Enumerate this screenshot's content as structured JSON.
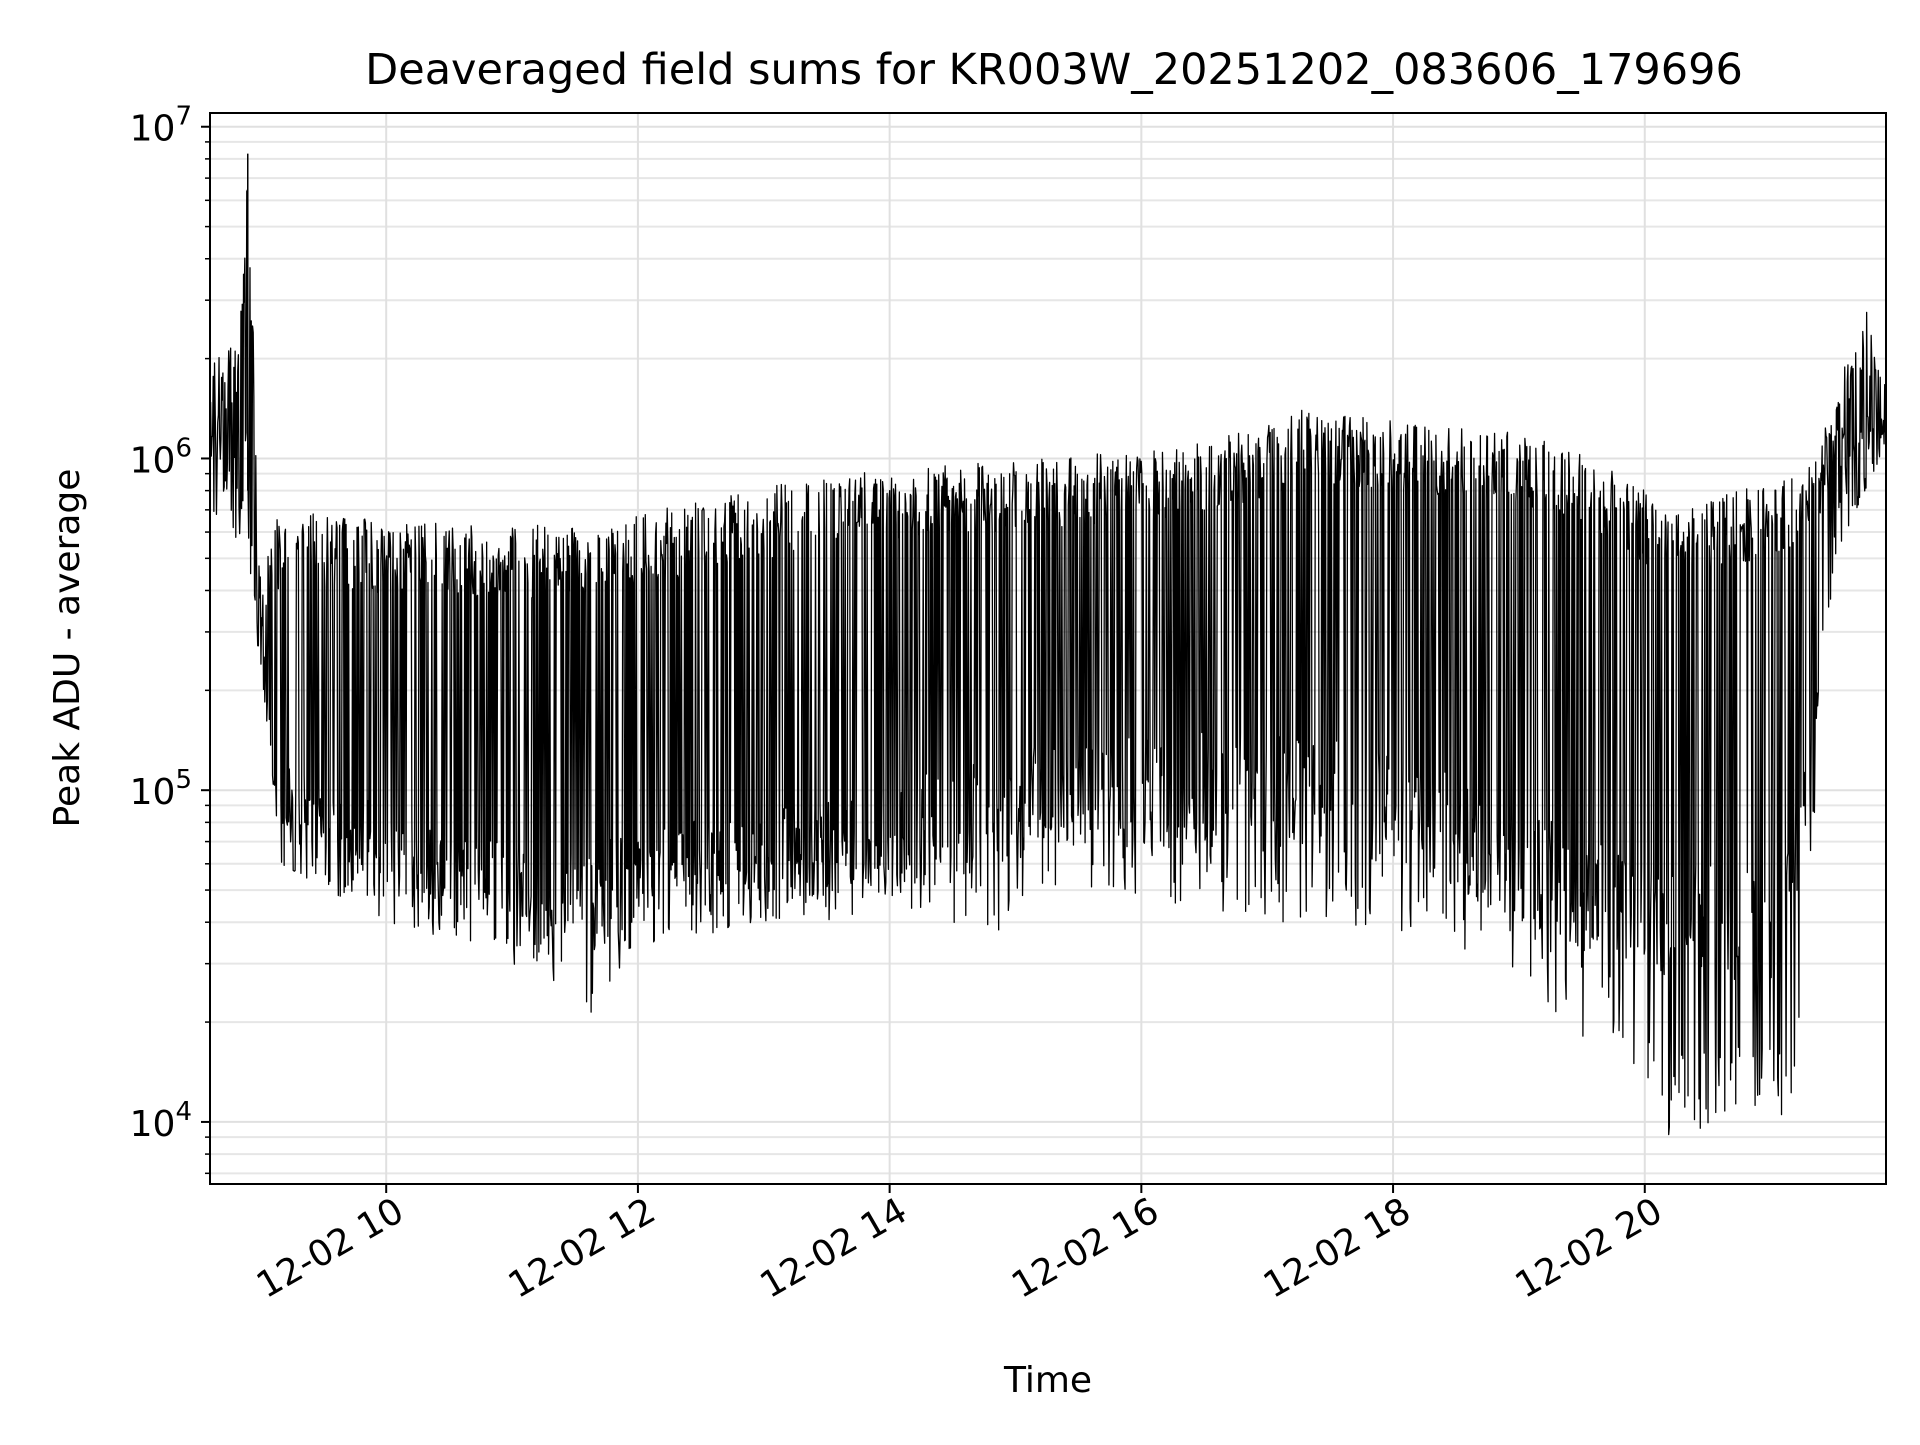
{
  "chart_data": {
    "type": "line",
    "title": "Deaveraged field sums for KR003W_20251202_083606_179696",
    "xlabel": "Time",
    "ylabel": "Peak ADU - average",
    "x_range": [
      "2025-12-02 08:36",
      "2025-12-02 21:55"
    ],
    "xticks": [
      {
        "value": "2025-12-02 10:00",
        "label": "12-02 10"
      },
      {
        "value": "2025-12-02 12:00",
        "label": "12-02 12"
      },
      {
        "value": "2025-12-02 14:00",
        "label": "12-02 14"
      },
      {
        "value": "2025-12-02 16:00",
        "label": "12-02 16"
      },
      {
        "value": "2025-12-02 18:00",
        "label": "12-02 18"
      },
      {
        "value": "2025-12-02 20:00",
        "label": "12-02 20"
      }
    ],
    "yscale": "log",
    "ylim": [
      6500,
      11000000
    ],
    "yticks": [
      {
        "value": 10000,
        "base": "10",
        "exp": "4"
      },
      {
        "value": 100000,
        "base": "10",
        "exp": "5"
      },
      {
        "value": 1000000,
        "base": "10",
        "exp": "6"
      },
      {
        "value": 10000000,
        "base": "10",
        "exp": "7"
      }
    ],
    "grid": true,
    "legend": "none",
    "series": [
      {
        "color": "#000000",
        "upper_envelope": [
          {
            "x": "2025-12-02 08:36",
            "y": 1900000
          },
          {
            "x": "2025-12-02 08:50",
            "y": 2400000
          },
          {
            "x": "2025-12-02 08:54",
            "y": 8300000
          },
          {
            "x": "2025-12-02 09:00",
            "y": 500000
          },
          {
            "x": "2025-12-02 09:10",
            "y": 700000
          },
          {
            "x": "2025-12-02 10:00",
            "y": 650000
          },
          {
            "x": "2025-12-02 11:00",
            "y": 620000
          },
          {
            "x": "2025-12-02 12:00",
            "y": 680000
          },
          {
            "x": "2025-12-02 13:00",
            "y": 820000
          },
          {
            "x": "2025-12-02 14:00",
            "y": 950000
          },
          {
            "x": "2025-12-02 15:00",
            "y": 1000000
          },
          {
            "x": "2025-12-02 16:00",
            "y": 1050000
          },
          {
            "x": "2025-12-02 17:00",
            "y": 1250000
          },
          {
            "x": "2025-12-02 17:15",
            "y": 1400000
          },
          {
            "x": "2025-12-02 18:00",
            "y": 1300000
          },
          {
            "x": "2025-12-02 19:00",
            "y": 1200000
          },
          {
            "x": "2025-12-02 19:30",
            "y": 1050000
          },
          {
            "x": "2025-12-02 20:00",
            "y": 800000
          },
          {
            "x": "2025-12-02 20:30",
            "y": 750000
          },
          {
            "x": "2025-12-02 21:00",
            "y": 850000
          },
          {
            "x": "2025-12-02 21:20",
            "y": 950000
          },
          {
            "x": "2025-12-02 21:30",
            "y": 1500000
          },
          {
            "x": "2025-12-02 21:45",
            "y": 3200000
          },
          {
            "x": "2025-12-02 21:55",
            "y": 1600000
          }
        ],
        "lower_envelope": [
          {
            "x": "2025-12-02 08:36",
            "y": 700000
          },
          {
            "x": "2025-12-02 08:50",
            "y": 500000
          },
          {
            "x": "2025-12-02 09:00",
            "y": 250000
          },
          {
            "x": "2025-12-02 09:10",
            "y": 60000
          },
          {
            "x": "2025-12-02 10:00",
            "y": 40000
          },
          {
            "x": "2025-12-02 11:00",
            "y": 30000
          },
          {
            "x": "2025-12-02 11:45",
            "y": 20000
          },
          {
            "x": "2025-12-02 12:00",
            "y": 32000
          },
          {
            "x": "2025-12-02 13:00",
            "y": 38000
          },
          {
            "x": "2025-12-02 14:00",
            "y": 42000
          },
          {
            "x": "2025-12-02 14:50",
            "y": 34000
          },
          {
            "x": "2025-12-02 15:00",
            "y": 48000
          },
          {
            "x": "2025-12-02 16:00",
            "y": 48000
          },
          {
            "x": "2025-12-02 17:00",
            "y": 40000
          },
          {
            "x": "2025-12-02 18:00",
            "y": 38000
          },
          {
            "x": "2025-12-02 19:00",
            "y": 28000
          },
          {
            "x": "2025-12-02 19:30",
            "y": 17000
          },
          {
            "x": "2025-12-02 20:00",
            "y": 14000
          },
          {
            "x": "2025-12-02 20:10",
            "y": 9000
          },
          {
            "x": "2025-12-02 20:50",
            "y": 10000
          },
          {
            "x": "2025-12-02 21:10",
            "y": 9000
          },
          {
            "x": "2025-12-02 21:20",
            "y": 70000
          },
          {
            "x": "2025-12-02 21:30",
            "y": 500000
          },
          {
            "x": "2025-12-02 21:55",
            "y": 1100000
          }
        ],
        "baseline": [
          {
            "x": "2025-12-02 08:36",
            "y": 1000000
          },
          {
            "x": "2025-12-02 08:55",
            "y": 800000
          },
          {
            "x": "2025-12-02 09:00",
            "y": 250000
          },
          {
            "x": "2025-12-02 09:10",
            "y": 80000
          },
          {
            "x": "2025-12-02 10:00",
            "y": 60000
          },
          {
            "x": "2025-12-02 11:00",
            "y": 45000
          },
          {
            "x": "2025-12-02 12:00",
            "y": 50000
          },
          {
            "x": "2025-12-02 13:00",
            "y": 60000
          },
          {
            "x": "2025-12-02 14:00",
            "y": 70000
          },
          {
            "x": "2025-12-02 15:00",
            "y": 90000
          },
          {
            "x": "2025-12-02 16:00",
            "y": 100000
          },
          {
            "x": "2025-12-02 17:00",
            "y": 100000
          },
          {
            "x": "2025-12-02 18:00",
            "y": 90000
          },
          {
            "x": "2025-12-02 19:00",
            "y": 60000
          },
          {
            "x": "2025-12-02 20:00",
            "y": 40000
          },
          {
            "x": "2025-12-02 21:00",
            "y": 40000
          },
          {
            "x": "2025-12-02 21:20",
            "y": 100000
          },
          {
            "x": "2025-12-02 21:30",
            "y": 500000
          },
          {
            "x": "2025-12-02 21:55",
            "y": 1400000
          }
        ]
      }
    ]
  }
}
